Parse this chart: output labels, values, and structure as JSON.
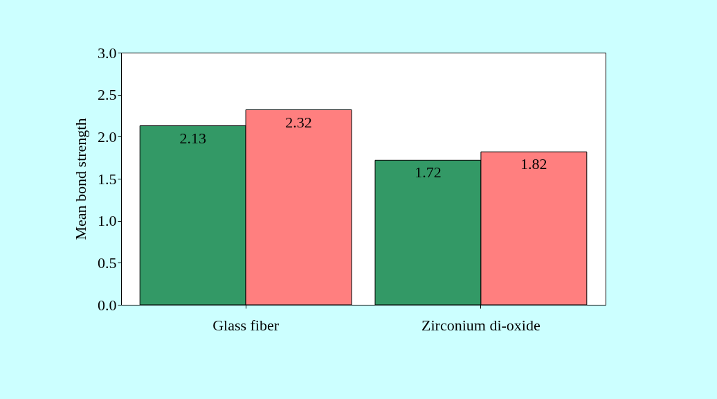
{
  "chart_data": {
    "type": "bar",
    "ylabel": "Mean bond strength",
    "categories": [
      "Glass fiber",
      "Zirconium di-oxide"
    ],
    "series": [
      {
        "color": "#339966",
        "values": [
          2.13,
          1.72
        ]
      },
      {
        "color": "#ff7f7f",
        "values": [
          2.32,
          1.82
        ]
      }
    ],
    "ylim": [
      0,
      3
    ],
    "yticks": [
      {
        "value": 0,
        "label": "0.0"
      },
      {
        "value": 0.5,
        "label": "0.5"
      },
      {
        "value": 1,
        "label": "1.0"
      },
      {
        "value": 1.5,
        "label": "1.5"
      },
      {
        "value": 2,
        "label": "2.0"
      },
      {
        "value": 2.5,
        "label": "2.5"
      },
      {
        "value": 3,
        "label": "3.0"
      }
    ],
    "data_labels": true,
    "grid": false,
    "legend": false
  }
}
